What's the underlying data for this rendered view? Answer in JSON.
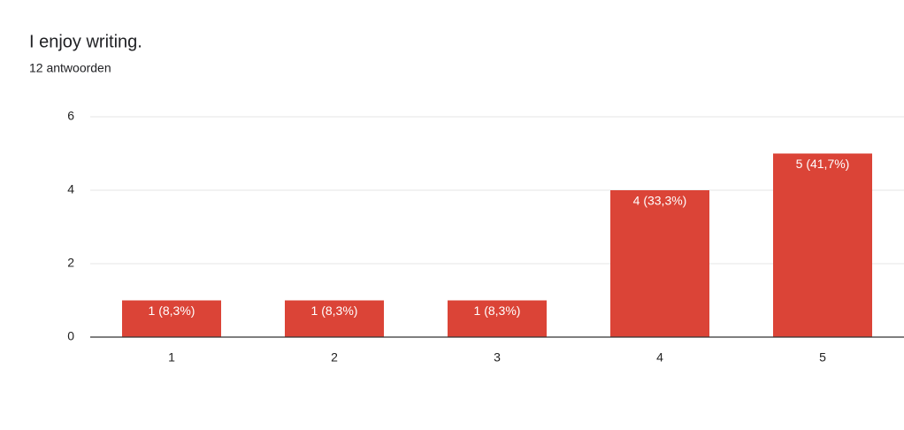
{
  "chart_data": {
    "type": "bar",
    "title": "I enjoy writing.",
    "subtitle": "12 antwoorden",
    "categories": [
      "1",
      "2",
      "3",
      "4",
      "5"
    ],
    "values": [
      1,
      1,
      1,
      4,
      5
    ],
    "value_labels": [
      "1 (8,3%)",
      "1 (8,3%)",
      "1 (8,3%)",
      "4 (33,3%)",
      "5 (41,7%)"
    ],
    "color": "#db4437",
    "ylim": [
      0,
      6
    ],
    "yticks": [
      0,
      2,
      4,
      6
    ],
    "grid": true
  }
}
